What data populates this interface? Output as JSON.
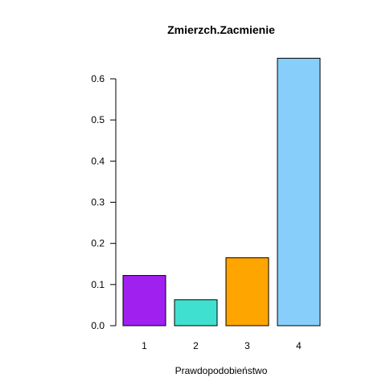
{
  "chart_data": {
    "type": "bar",
    "title": "Zmierzch.Zacmienie",
    "xlabel": "Prawdopodobieństwo",
    "ylabel": "",
    "categories": [
      "1",
      "2",
      "3",
      "4"
    ],
    "values": [
      0.122,
      0.063,
      0.165,
      0.65
    ],
    "colors": [
      "#A020F0",
      "#40E0D0",
      "#FFA500",
      "#87CEFA"
    ],
    "ylim": [
      0,
      0.6
    ],
    "yticks": [
      0.0,
      0.1,
      0.2,
      0.3,
      0.4,
      0.5,
      0.6
    ],
    "ytick_labels": [
      "0.0",
      "0.1",
      "0.2",
      "0.3",
      "0.4",
      "0.5",
      "0.6"
    ],
    "grid": false,
    "legend": "none"
  }
}
